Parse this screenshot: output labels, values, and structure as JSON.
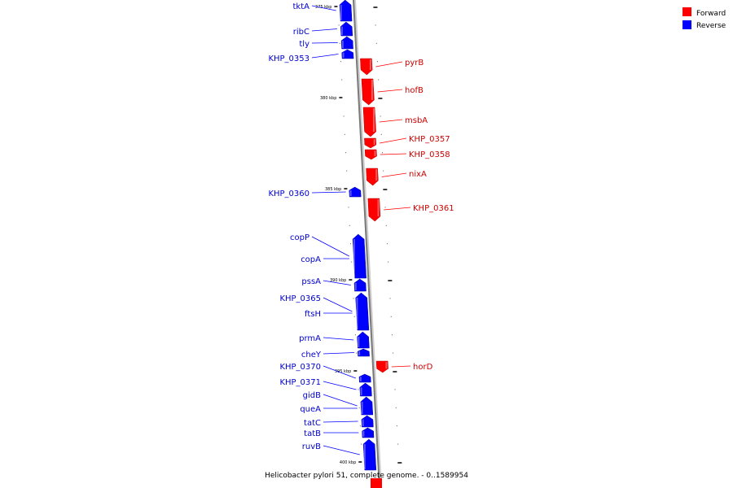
{
  "caption": "Helicobacter pylori 51, complete genome. - 0..1589954",
  "legend": [
    {
      "label": "Forward",
      "color": "#ff0000"
    },
    {
      "label": "Reverse",
      "color": "#0000ff"
    }
  ],
  "chart_data": {
    "type": "diagram",
    "ticks": [
      {
        "label": "375 kbp",
        "kbp": 375
      },
      {
        "label": "380 kbp",
        "kbp": 380
      },
      {
        "label": "385 kbp",
        "kbp": 385
      },
      {
        "label": "390 kbp",
        "kbp": 390
      },
      {
        "label": "395 kbp",
        "kbp": 395
      },
      {
        "label": "400 kbp",
        "kbp": 400
      }
    ],
    "genes": [
      {
        "name": "tktA",
        "strand": "reverse"
      },
      {
        "name": "ribC",
        "strand": "reverse"
      },
      {
        "name": "tly",
        "strand": "reverse"
      },
      {
        "name": "KHP_0353",
        "strand": "reverse"
      },
      {
        "name": "pyrB",
        "strand": "forward"
      },
      {
        "name": "hofB",
        "strand": "forward"
      },
      {
        "name": "msbA",
        "strand": "forward"
      },
      {
        "name": "KHP_0357",
        "strand": "forward"
      },
      {
        "name": "KHP_0358",
        "strand": "forward"
      },
      {
        "name": "nixA",
        "strand": "forward"
      },
      {
        "name": "KHP_0360",
        "strand": "reverse"
      },
      {
        "name": "KHP_0361",
        "strand": "forward"
      },
      {
        "name": "copP",
        "strand": "reverse"
      },
      {
        "name": "copA",
        "strand": "reverse"
      },
      {
        "name": "pssA",
        "strand": "reverse"
      },
      {
        "name": "KHP_0365",
        "strand": "reverse"
      },
      {
        "name": "ftsH",
        "strand": "reverse"
      },
      {
        "name": "prmA",
        "strand": "reverse"
      },
      {
        "name": "cheY",
        "strand": "reverse"
      },
      {
        "name": "horD",
        "strand": "forward"
      },
      {
        "name": "KHP_0370",
        "strand": "reverse"
      },
      {
        "name": "KHP_0371",
        "strand": "reverse"
      },
      {
        "name": "gidB",
        "strand": "reverse"
      },
      {
        "name": "queA",
        "strand": "reverse"
      },
      {
        "name": "tatC",
        "strand": "reverse"
      },
      {
        "name": "tatB",
        "strand": "reverse"
      },
      {
        "name": "ruvB",
        "strand": "reverse"
      }
    ]
  }
}
